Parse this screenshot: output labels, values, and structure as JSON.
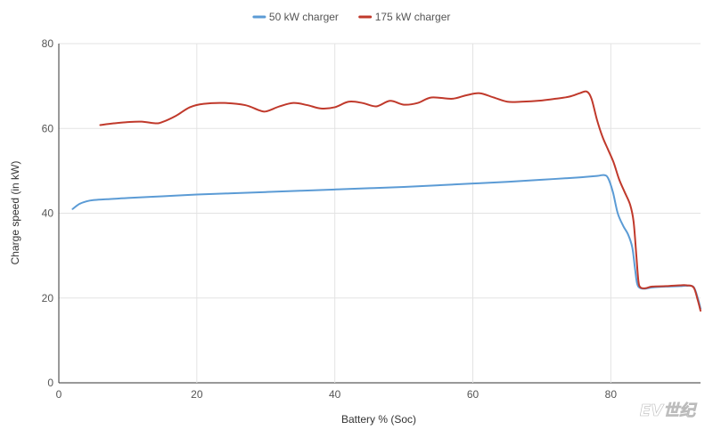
{
  "chart_data": {
    "type": "line",
    "title": "",
    "xlabel": "Battery % (Soc)",
    "ylabel": "Charge speed (in kW)",
    "xlim": [
      0,
      93
    ],
    "ylim": [
      0,
      80
    ],
    "x_ticks": [
      0,
      20,
      40,
      60,
      80
    ],
    "y_ticks": [
      0,
      20,
      40,
      60,
      80
    ],
    "grid": true,
    "legend_position": "top-center",
    "series": [
      {
        "name": "50 kW charger",
        "color": "#5b9bd5",
        "points": [
          [
            2,
            41
          ],
          [
            3,
            42.2
          ],
          [
            4,
            42.8
          ],
          [
            5,
            43.1
          ],
          [
            7,
            43.3
          ],
          [
            10,
            43.6
          ],
          [
            15,
            44
          ],
          [
            20,
            44.4
          ],
          [
            25,
            44.7
          ],
          [
            30,
            45
          ],
          [
            35,
            45.3
          ],
          [
            40,
            45.6
          ],
          [
            45,
            45.9
          ],
          [
            50,
            46.2
          ],
          [
            55,
            46.6
          ],
          [
            60,
            47
          ],
          [
            65,
            47.4
          ],
          [
            70,
            47.9
          ],
          [
            75,
            48.4
          ],
          [
            78,
            48.8
          ],
          [
            79,
            49
          ],
          [
            79.6,
            48.3
          ],
          [
            80.3,
            45
          ],
          [
            81,
            40
          ],
          [
            81.8,
            37
          ],
          [
            82.5,
            35
          ],
          [
            83.1,
            32
          ],
          [
            83.5,
            27
          ],
          [
            83.8,
            23.5
          ],
          [
            84.2,
            22.4
          ],
          [
            85,
            22.2
          ],
          [
            86,
            22.5
          ],
          [
            88,
            22.7
          ],
          [
            90,
            22.8
          ],
          [
            91,
            22.9
          ],
          [
            92,
            22.6
          ],
          [
            92.6,
            20
          ],
          [
            93,
            17.5
          ]
        ]
      },
      {
        "name": "175 kW charger",
        "color": "#c0392b",
        "points": [
          [
            6,
            60.8
          ],
          [
            8,
            61.2
          ],
          [
            10,
            61.5
          ],
          [
            12,
            61.6
          ],
          [
            14,
            61.2
          ],
          [
            15,
            61.5
          ],
          [
            17,
            63
          ],
          [
            19,
            65
          ],
          [
            21,
            65.8
          ],
          [
            24,
            66
          ],
          [
            27,
            65.5
          ],
          [
            29,
            64.3
          ],
          [
            30,
            64
          ],
          [
            32,
            65.2
          ],
          [
            34,
            66
          ],
          [
            36,
            65.5
          ],
          [
            38,
            64.7
          ],
          [
            40,
            65
          ],
          [
            42,
            66.3
          ],
          [
            44,
            66
          ],
          [
            46,
            65.2
          ],
          [
            48,
            66.5
          ],
          [
            50,
            65.6
          ],
          [
            52,
            66
          ],
          [
            54,
            67.3
          ],
          [
            57,
            67
          ],
          [
            59,
            67.8
          ],
          [
            61,
            68.3
          ],
          [
            63,
            67.3
          ],
          [
            65,
            66.3
          ],
          [
            67,
            66.3
          ],
          [
            70,
            66.6
          ],
          [
            72,
            67
          ],
          [
            74,
            67.5
          ],
          [
            75.5,
            68.3
          ],
          [
            76.5,
            68.7
          ],
          [
            77.2,
            67
          ],
          [
            78,
            62
          ],
          [
            78.8,
            58
          ],
          [
            79.6,
            55
          ],
          [
            80.4,
            52
          ],
          [
            81.2,
            48
          ],
          [
            82,
            45
          ],
          [
            82.8,
            42
          ],
          [
            83.3,
            38
          ],
          [
            83.7,
            30
          ],
          [
            84,
            24
          ],
          [
            84.3,
            22.5
          ],
          [
            85,
            22.3
          ],
          [
            86,
            22.7
          ],
          [
            88,
            22.8
          ],
          [
            90,
            23
          ],
          [
            91,
            23
          ],
          [
            92,
            22.5
          ],
          [
            92.6,
            19.5
          ],
          [
            93,
            17
          ]
        ]
      }
    ]
  }
}
